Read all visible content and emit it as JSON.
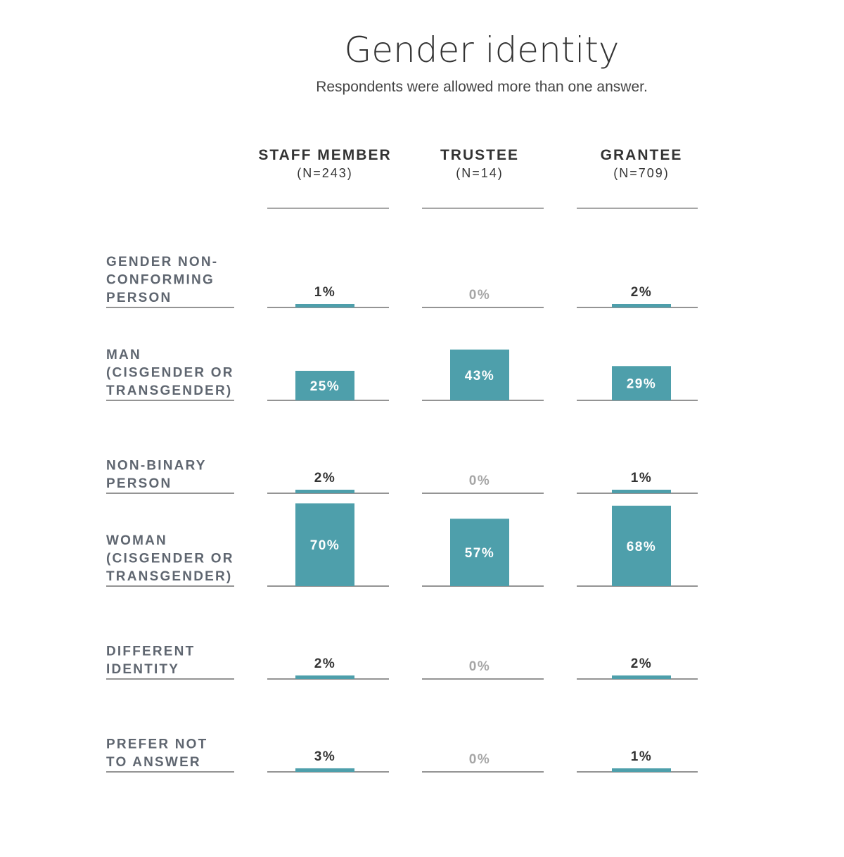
{
  "chart_data": {
    "type": "bar",
    "title": "Gender identity",
    "subtitle": "Respondents were allowed more than one answer.",
    "unit": "%",
    "columns": [
      {
        "name": "STAFF MEMBER",
        "n": "(N=243)"
      },
      {
        "name": "TRUSTEE",
        "n": "(N=14)"
      },
      {
        "name": "GRANTEE",
        "n": "(N=709)"
      }
    ],
    "categories": [
      [
        "GENDER NON-",
        "CONFORMING",
        "PERSON"
      ],
      [
        "MAN",
        "(CISGENDER OR",
        "TRANSGENDER)"
      ],
      [
        "NON-BINARY",
        "PERSON"
      ],
      [
        "WOMAN",
        "(CISGENDER OR",
        "TRANSGENDER)"
      ],
      [
        "DIFFERENT",
        "IDENTITY"
      ],
      [
        "PREFER NOT",
        "TO ANSWER"
      ]
    ],
    "series": [
      {
        "name": "STAFF MEMBER",
        "values": [
          1,
          25,
          2,
          70,
          2,
          3
        ]
      },
      {
        "name": "TRUSTEE",
        "values": [
          0,
          43,
          0,
          57,
          0,
          0
        ]
      },
      {
        "name": "GRANTEE",
        "values": [
          2,
          29,
          1,
          68,
          2,
          1
        ]
      }
    ],
    "value_labels": [
      [
        "1%",
        "25%",
        "2%",
        "70%",
        "2%",
        "3%"
      ],
      [
        "0%",
        "43%",
        "0%",
        "57%",
        "0%",
        "0%"
      ],
      [
        "2%",
        "29%",
        "1%",
        "68%",
        "2%",
        "1%"
      ]
    ],
    "colors": {
      "bar": "#4e9fab",
      "text_dark": "#333333",
      "text_label": "#5f6670",
      "zero_label": "#a6a6a6",
      "rule": "#555555",
      "bar_label": "#ffffff"
    }
  }
}
